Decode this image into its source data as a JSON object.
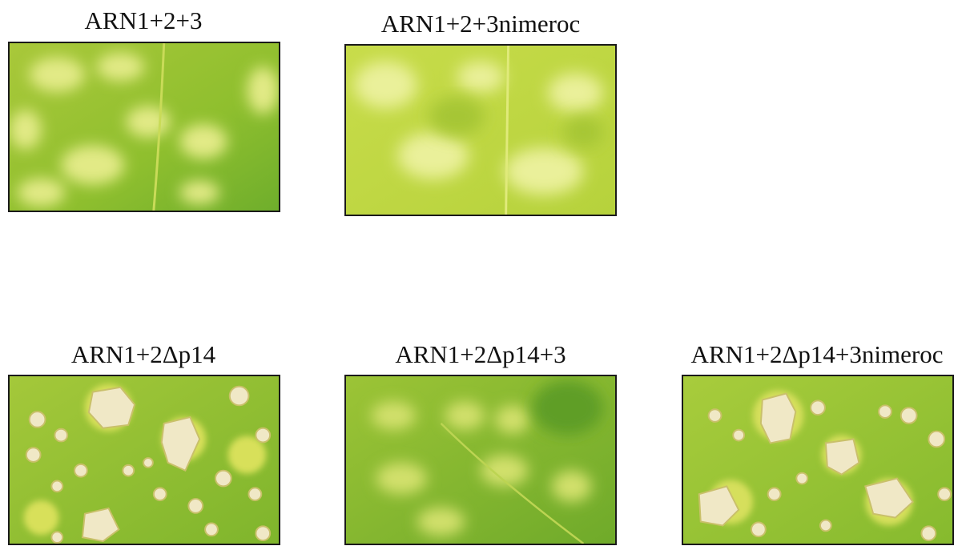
{
  "panels": [
    {
      "label": "ARN1+2+3"
    },
    {
      "label": "ARN1+2+3nimeroc"
    },
    {
      "label": "ARN1+2Δp14"
    },
    {
      "label": "ARN1+2Δp14+3"
    },
    {
      "label": "ARN1+2Δp14+3nimeroc"
    }
  ],
  "colors": {
    "leaf_green": "#8fbf2e",
    "leaf_yellow_green": "#c8dc4a",
    "chlorotic_spot": "#e6ec8a",
    "necrotic_lesion": "#efe6c4",
    "frame": "#1a1a1a"
  }
}
